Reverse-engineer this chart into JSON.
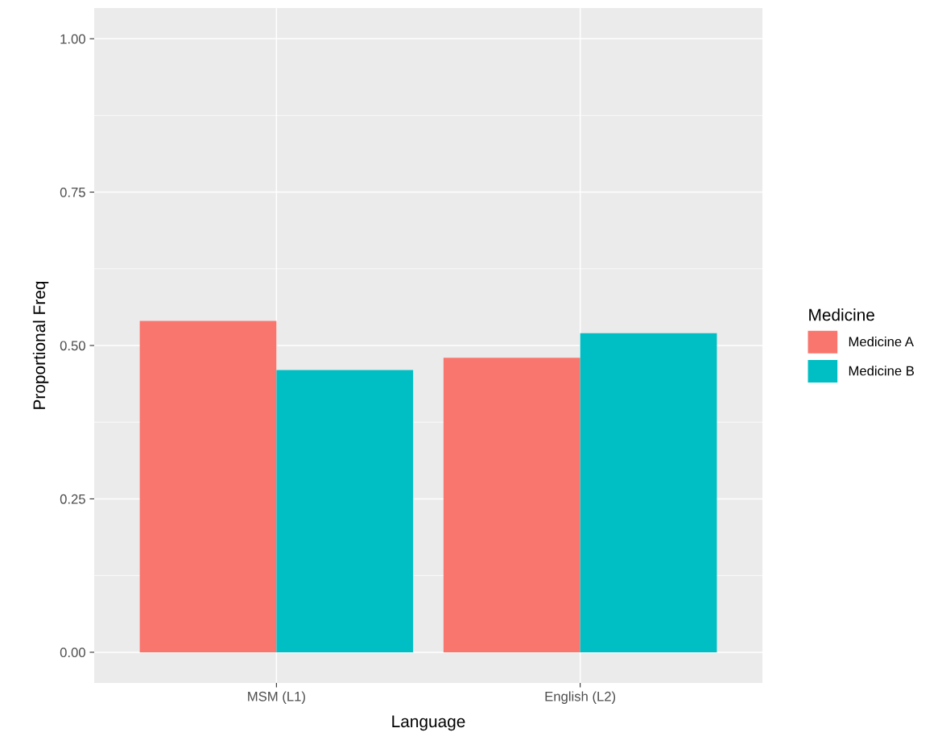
{
  "chart_data": {
    "type": "bar",
    "xlabel": "Language",
    "ylabel": "Proportional Freq",
    "legend_title": "Medicine",
    "categories": [
      "MSM (L1)",
      "English (L2)"
    ],
    "series": [
      {
        "name": "Medicine A",
        "color": "#f8766d",
        "values": [
          0.54,
          0.48
        ]
      },
      {
        "name": "Medicine B",
        "color": "#00bfc4",
        "values": [
          0.46,
          0.52
        ]
      }
    ],
    "ylim": [
      -0.05,
      1.05
    ],
    "yticks": [
      {
        "value": 0,
        "label": "0.00"
      },
      {
        "value": 0.25,
        "label": "0.25"
      },
      {
        "value": 0.5,
        "label": "0.50"
      },
      {
        "value": 0.75,
        "label": "0.75"
      },
      {
        "value": 1,
        "label": "1.00"
      }
    ],
    "grid": true,
    "legend": "right"
  }
}
